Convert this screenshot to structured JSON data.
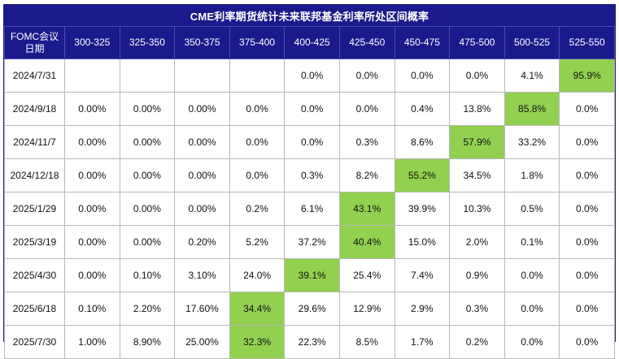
{
  "title": "CME利率期货统计未来联邦基金利率所处区间概率",
  "header": {
    "first_col": [
      "FOMC会议",
      "日期"
    ],
    "ranges": [
      "300-325",
      "325-350",
      "350-375",
      "375-400",
      "400-425",
      "425-450",
      "450-475",
      "475-500",
      "500-525",
      "525-550"
    ]
  },
  "highlight_color": "#92d050",
  "rows": [
    {
      "date": "2024/7/31",
      "values": [
        "",
        "",
        "",
        "",
        "0.0%",
        "0.0%",
        "0.0%",
        "0.0%",
        "4.1%",
        "95.9%"
      ],
      "hl": 9
    },
    {
      "date": "2024/9/18",
      "values": [
        "0.00%",
        "0.00%",
        "0.00%",
        "0.0%",
        "0.0%",
        "0.0%",
        "0.4%",
        "13.8%",
        "85.8%",
        "0.0%"
      ],
      "hl": 8
    },
    {
      "date": "2024/11/7",
      "values": [
        "0.00%",
        "0.00%",
        "0.00%",
        "0.0%",
        "0.0%",
        "0.3%",
        "8.6%",
        "57.9%",
        "33.2%",
        "0.0%"
      ],
      "hl": 7
    },
    {
      "date": "2024/12/18",
      "values": [
        "0.00%",
        "0.00%",
        "0.00%",
        "0.0%",
        "0.3%",
        "8.2%",
        "55.2%",
        "34.5%",
        "1.8%",
        "0.0%"
      ],
      "hl": 6
    },
    {
      "date": "2025/1/29",
      "values": [
        "0.00%",
        "0.00%",
        "0.00%",
        "0.2%",
        "6.1%",
        "43.1%",
        "39.9%",
        "10.3%",
        "0.5%",
        "0.0%"
      ],
      "hl": 5
    },
    {
      "date": "2025/3/19",
      "values": [
        "0.00%",
        "0.00%",
        "0.20%",
        "5.2%",
        "37.2%",
        "40.4%",
        "15.0%",
        "2.0%",
        "0.1%",
        "0.0%"
      ],
      "hl": 5
    },
    {
      "date": "2025/4/30",
      "values": [
        "0.00%",
        "0.10%",
        "3.10%",
        "24.0%",
        "39.1%",
        "25.4%",
        "7.4%",
        "0.9%",
        "0.0%",
        "0.0%"
      ],
      "hl": 4
    },
    {
      "date": "2025/6/18",
      "values": [
        "0.10%",
        "2.20%",
        "17.60%",
        "34.4%",
        "29.6%",
        "12.9%",
        "2.9%",
        "0.3%",
        "0.0%",
        "0.0%"
      ],
      "hl": 3
    },
    {
      "date": "2025/7/30",
      "values": [
        "1.00%",
        "8.90%",
        "25.00%",
        "32.3%",
        "22.3%",
        "8.5%",
        "1.7%",
        "0.2%",
        "0.0%",
        "0.0%"
      ],
      "hl": 3
    }
  ]
}
